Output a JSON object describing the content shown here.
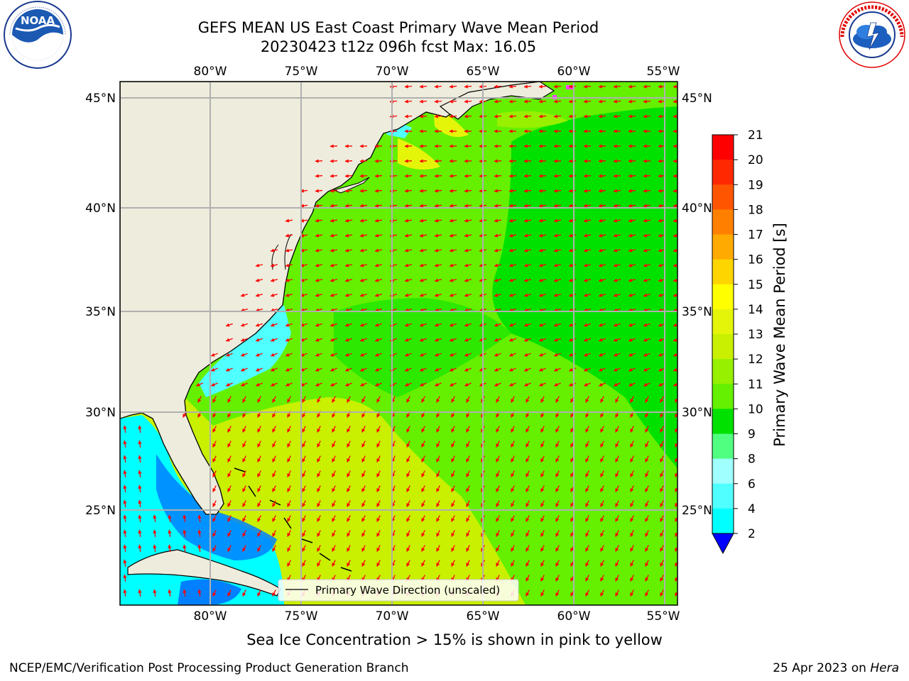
{
  "title": {
    "line1": "GEFS MEAN US East Coast Primary Wave Mean Period",
    "line2": "20230423 t12z 096h fcst   Max: 16.05"
  },
  "caption": "Sea Ice Concentration > 15% is shown in pink to yellow",
  "credit_left": "NCEP/EMC/Verification Post Processing Product Generation Branch",
  "credit_right_date": "25 Apr 2023 on ",
  "credit_right_machine": "Hera",
  "logos": {
    "left": "NOAA",
    "left_ring": "NATIONAL OCEANIC AND ATMOSPHERIC ADMINISTRATION · U.S. DEPARTMENT OF COMMERCE",
    "right_ring": "NATIONAL WEATHER SERVICE"
  },
  "map": {
    "lon_labels": [
      "80°W",
      "75°W",
      "70°W",
      "65°W",
      "60°W",
      "55°W"
    ],
    "lat_labels": [
      "45°N",
      "40°N",
      "35°N",
      "30°N",
      "25°N"
    ],
    "legend": "Primary Wave Direction (unscaled)",
    "colors": {
      "land": "#eeecdc",
      "arrow": "#ff0000",
      "grid": "#b0b0b0"
    }
  },
  "colorbar": {
    "label": "Primary Wave Mean Period [s]",
    "ticks": [
      "21",
      "20",
      "19",
      "18",
      "17",
      "16",
      "15",
      "14",
      "13",
      "12",
      "11",
      "10",
      "9",
      "8",
      "6",
      "4",
      "2"
    ],
    "colors": [
      "#ff0000",
      "#ff2800",
      "#ff5500",
      "#ff8000",
      "#ffaa00",
      "#ffd500",
      "#ffff00",
      "#e5f50a",
      "#c8f000",
      "#96f000",
      "#64f000",
      "#00e100",
      "#50ff80",
      "#a0ffff",
      "#50ffff",
      "#00ffff",
      "#0080ff"
    ],
    "under_color": "#0000ff"
  }
}
